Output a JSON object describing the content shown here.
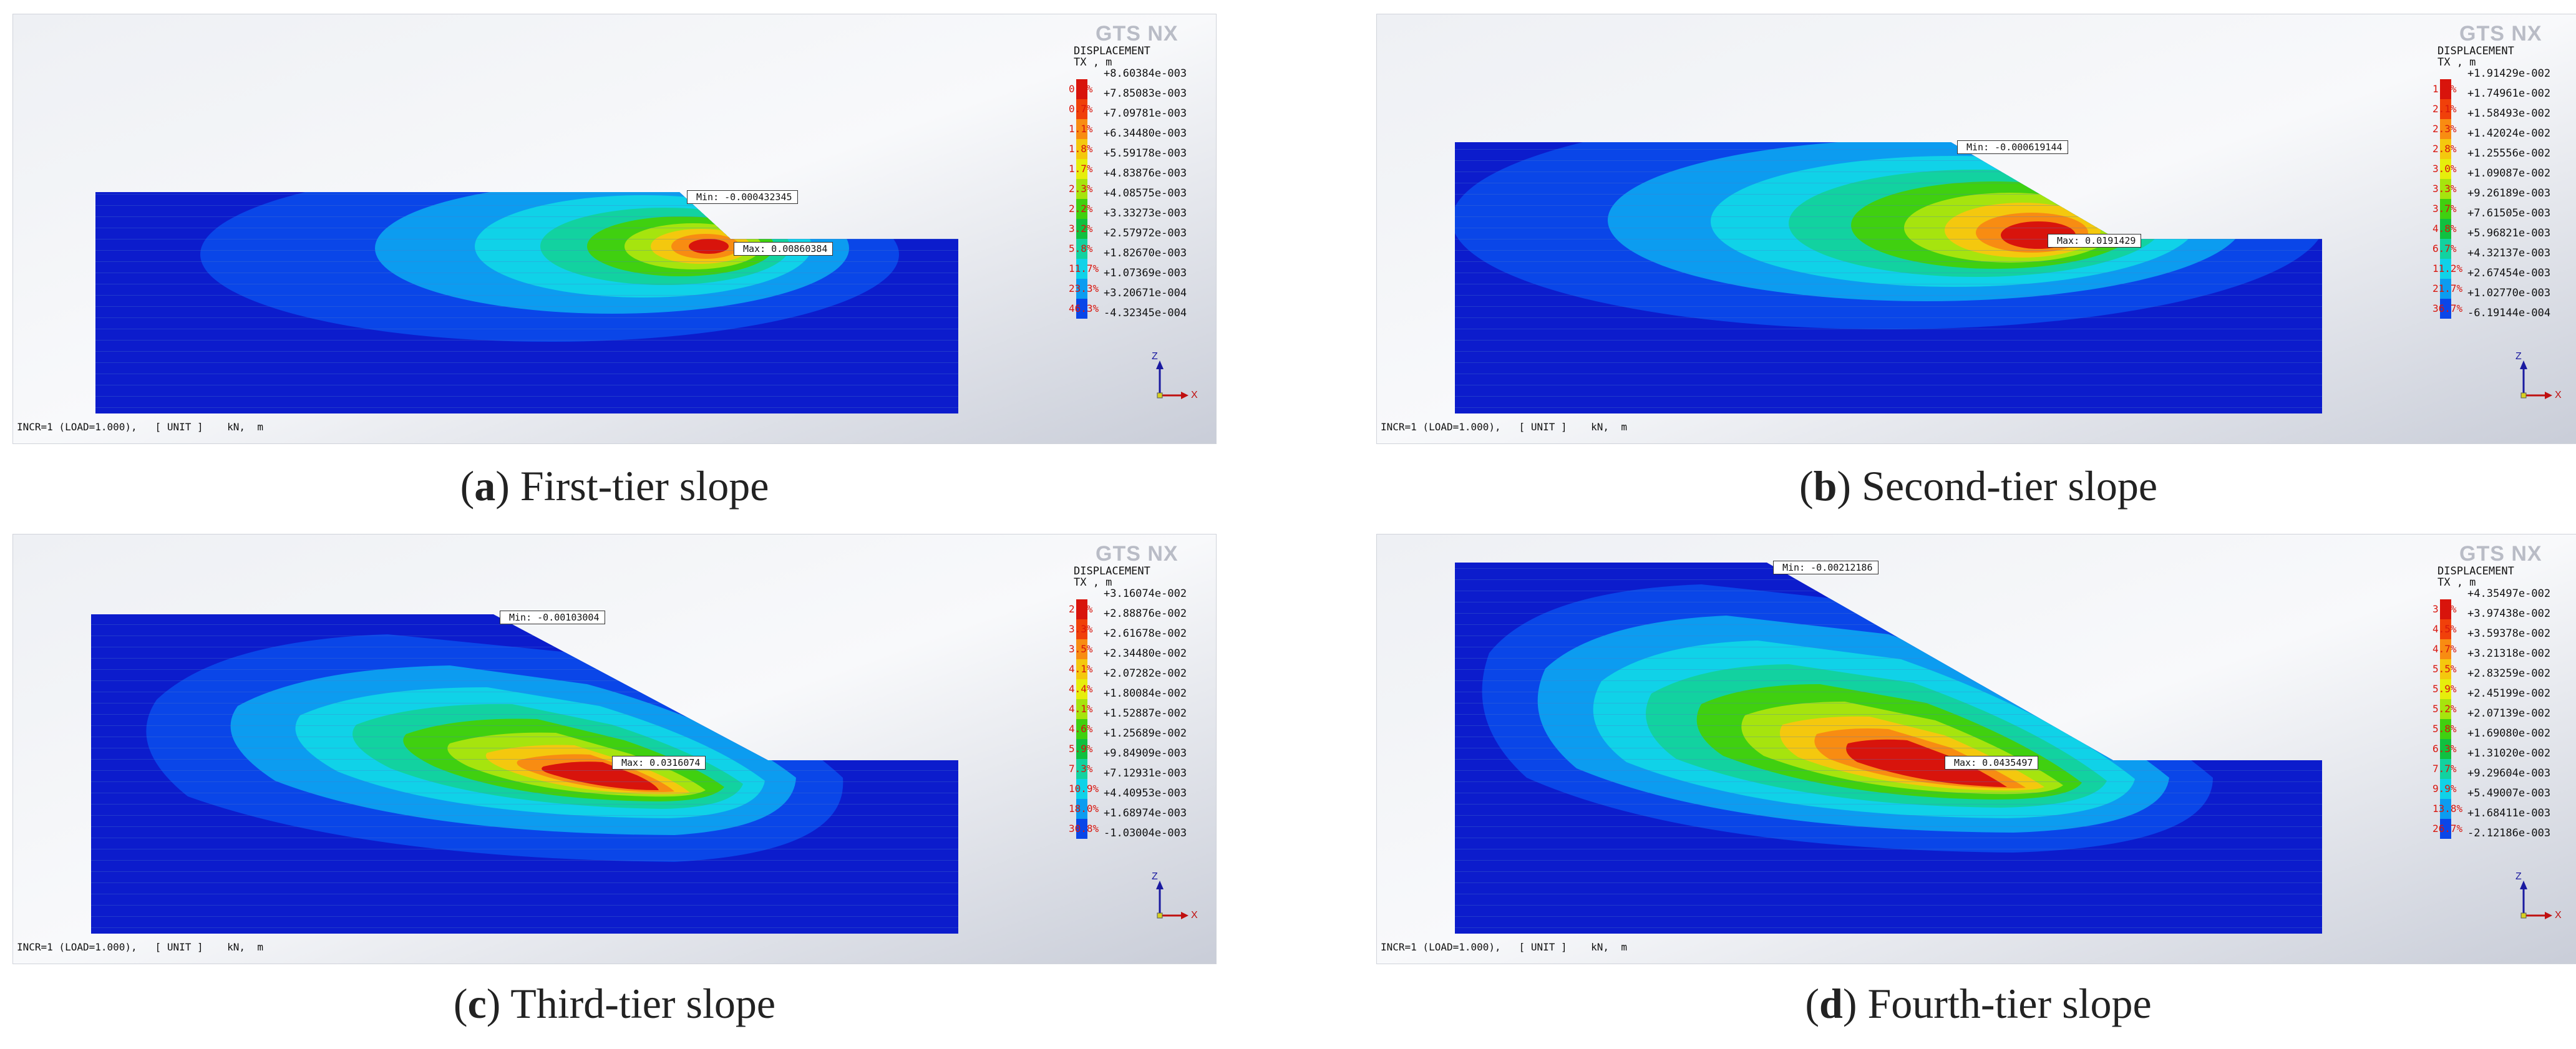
{
  "common": {
    "status_text": "INCR=1 (LOAD=1.000),   [ UNIT ]    kN,  m",
    "logo_text": "GTS NX",
    "legend_title_line1": "DISPLACEMENT",
    "legend_title_line2": "TX , m",
    "axis_z": "Z",
    "axis_x": "X",
    "colors": [
      "#d8140c",
      "#f0400a",
      "#f88c12",
      "#f4c80e",
      "#e6ee0c",
      "#a6e40e",
      "#40d010",
      "#10c040",
      "#12d2a0",
      "#10d2e8",
      "#0c9cf0",
      "#0a46e8",
      "#0c1ccc"
    ]
  },
  "panels": [
    {
      "caption_letter": "a",
      "caption_text": " First-tier slope",
      "min_label": "Min: -0.000432345",
      "max_label": "Max: 0.00860384",
      "legend_values": [
        "+8.60384e-003",
        "+7.85083e-003",
        "+7.09781e-003",
        "+6.34480e-003",
        "+5.59178e-003",
        "+4.83876e-003",
        "+4.08575e-003",
        "+3.33273e-003",
        "+2.57972e-003",
        "+1.82670e-003",
        "+1.07369e-003",
        "+3.20671e-004",
        "-4.32345e-004"
      ],
      "legend_percents": [
        "0.4%",
        "0.7%",
        "1.1%",
        "1.8%",
        "1.7%",
        "2.3%",
        "2.2%",
        "3.2%",
        "5.8%",
        "11.7%",
        "23.3%",
        "46.3%"
      ]
    },
    {
      "caption_letter": "b",
      "caption_text": " Second-tier slope",
      "min_label": "Min: -0.000619144",
      "max_label": "Max: 0.0191429",
      "legend_values": [
        "+1.91429e-002",
        "+1.74961e-002",
        "+1.58493e-002",
        "+1.42024e-002",
        "+1.25556e-002",
        "+1.09087e-002",
        "+9.26189e-003",
        "+7.61505e-003",
        "+5.96821e-003",
        "+4.32137e-003",
        "+2.67454e-003",
        "+1.02770e-003",
        "-6.19144e-004"
      ],
      "legend_percents": [
        "1.8%",
        "2.1%",
        "2.3%",
        "2.8%",
        "3.0%",
        "3.3%",
        "3.7%",
        "4.8%",
        "6.7%",
        "11.2%",
        "21.7%",
        "36.7%"
      ]
    },
    {
      "caption_letter": "c",
      "caption_text": " Third-tier slope",
      "min_label": "Min: -0.00103004",
      "max_label": "Max: 0.0316074",
      "legend_values": [
        "+3.16074e-002",
        "+2.88876e-002",
        "+2.61678e-002",
        "+2.34480e-002",
        "+2.07282e-002",
        "+1.80084e-002",
        "+1.52887e-002",
        "+1.25689e-002",
        "+9.84909e-003",
        "+7.12931e-003",
        "+4.40953e-003",
        "+1.68974e-003",
        "-1.03004e-003"
      ],
      "legend_percents": [
        "2.5%",
        "3.3%",
        "3.5%",
        "4.1%",
        "4.4%",
        "4.1%",
        "4.6%",
        "5.9%",
        "7.3%",
        "10.9%",
        "18.0%",
        "30.8%"
      ]
    },
    {
      "caption_letter": "d",
      "caption_text": " Fourth-tier slope",
      "min_label": "Min: -0.00212186",
      "max_label": "Max: 0.0435497",
      "legend_values": [
        "+4.35497e-002",
        "+3.97438e-002",
        "+3.59378e-002",
        "+3.21318e-002",
        "+2.83259e-002",
        "+2.45199e-002",
        "+2.07139e-002",
        "+1.69080e-002",
        "+1.31020e-002",
        "+9.29604e-003",
        "+5.49007e-003",
        "+1.68411e-003",
        "-2.12186e-003"
      ],
      "legend_percents": [
        "3.9%",
        "4.5%",
        "4.7%",
        "5.5%",
        "5.9%",
        "5.2%",
        "5.8%",
        "6.3%",
        "7.7%",
        "9.9%",
        "13.8%",
        "26.7%"
      ]
    }
  ]
}
